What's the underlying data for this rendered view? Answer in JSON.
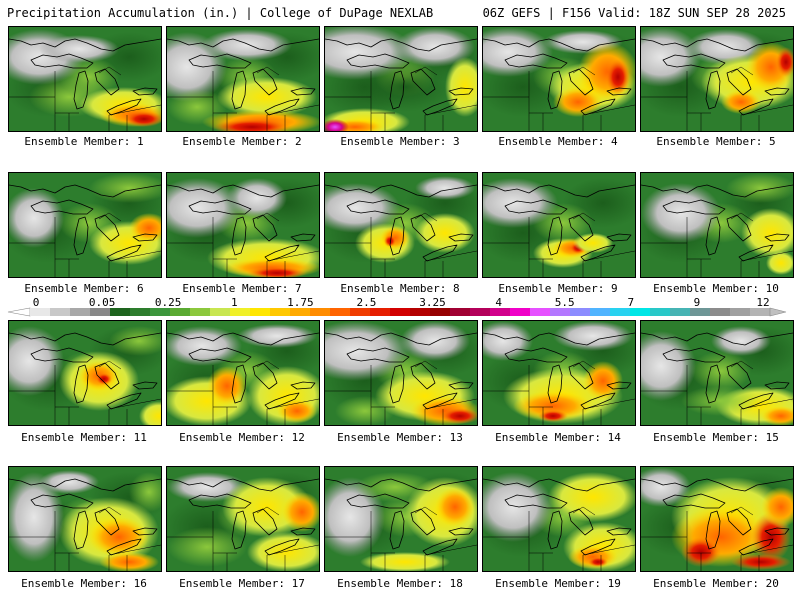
{
  "header": {
    "left": "Precipitation Accumulation (in.) | College of DuPage NEXLAB",
    "right": "06Z GEFS | F156 Valid: 18Z SUN SEP 28 2025"
  },
  "members": [
    {
      "label": "Ensemble Member: 1"
    },
    {
      "label": "Ensemble Member: 2"
    },
    {
      "label": "Ensemble Member: 3"
    },
    {
      "label": "Ensemble Member: 4"
    },
    {
      "label": "Ensemble Member: 5"
    },
    {
      "label": "Ensemble Member: 6"
    },
    {
      "label": "Ensemble Member: 7"
    },
    {
      "label": "Ensemble Member: 8"
    },
    {
      "label": "Ensemble Member: 9"
    },
    {
      "label": "Ensemble Member: 10"
    },
    {
      "label": "Ensemble Member: 11"
    },
    {
      "label": "Ensemble Member: 12"
    },
    {
      "label": "Ensemble Member: 13"
    },
    {
      "label": "Ensemble Member: 14"
    },
    {
      "label": "Ensemble Member: 15"
    },
    {
      "label": "Ensemble Member: 16"
    },
    {
      "label": "Ensemble Member: 17"
    },
    {
      "label": "Ensemble Member: 18"
    },
    {
      "label": "Ensemble Member: 19"
    },
    {
      "label": "Ensemble Member: 20"
    }
  ],
  "colorbar": {
    "ticks": [
      "0",
      "0.05",
      "0.25",
      "1",
      "1.75",
      "2.5",
      "3.25",
      "4",
      "5.5",
      "7",
      "9",
      "12"
    ],
    "colors": [
      "#e8e8e8",
      "#c8c8c8",
      "#a8a8a8",
      "#888888",
      "#1e641e",
      "#2d7d2d",
      "#3c963c",
      "#5aaa32",
      "#8cc83c",
      "#c8e650",
      "#f0f028",
      "#ffe600",
      "#ffc800",
      "#ffaa00",
      "#ff8c00",
      "#ff6400",
      "#f03c00",
      "#e61e00",
      "#d20000",
      "#b40000",
      "#960000",
      "#a00032",
      "#b4005a",
      "#d2008c",
      "#f000c8",
      "#e650ff",
      "#b478ff",
      "#8c8cff",
      "#50b4ff",
      "#28d2f0",
      "#00e6e6",
      "#28c8c8",
      "#46b4b4",
      "#6e9696",
      "#8c8c8c",
      "#a0a0a0",
      "#b4b4b4"
    ]
  }
}
